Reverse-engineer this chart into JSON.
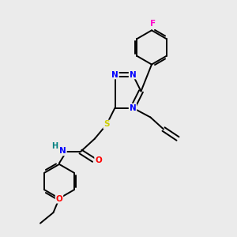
{
  "bg_color": "#ebebeb",
  "atom_colors": {
    "N": "#0000ff",
    "O": "#ff0000",
    "S": "#cccc00",
    "F": "#ff00cc",
    "H": "#008080",
    "C": "#000000"
  },
  "bond_color": "#000000",
  "figsize": [
    3.0,
    3.0
  ],
  "dpi": 100,
  "lw": 1.4,
  "fs": 7.5,
  "r_ph": 0.72,
  "r_tz": 0.6
}
